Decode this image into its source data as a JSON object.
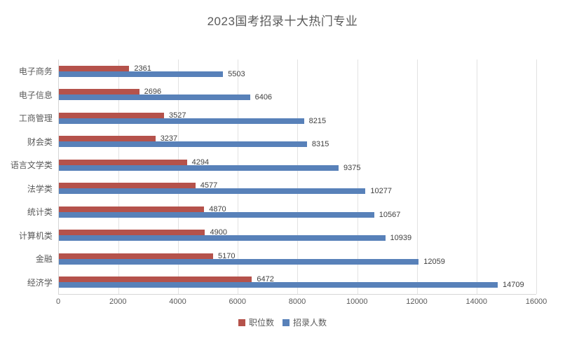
{
  "title": "2023国考招录十大热门专业",
  "chart_data": {
    "type": "bar",
    "orientation": "horizontal",
    "title": "2023国考招录十大热门专业",
    "categories": [
      "电子商务",
      "电子信息",
      "工商管理",
      "财会类",
      "语言文学类",
      "法学类",
      "统计类",
      "计算机类",
      "金融",
      "经济学"
    ],
    "series": [
      {
        "name": "职位数",
        "color": "#b5524b",
        "values": [
          2361,
          2696,
          3527,
          3237,
          4294,
          4577,
          4870,
          4900,
          5170,
          6472
        ]
      },
      {
        "name": "招录人数",
        "color": "#5881b9",
        "values": [
          5503,
          6406,
          8215,
          8315,
          9375,
          10277,
          10567,
          10939,
          12059,
          14709
        ]
      }
    ],
    "xlim": [
      0,
      16000
    ],
    "x_ticks": [
      0,
      2000,
      4000,
      6000,
      8000,
      10000,
      12000,
      14000,
      16000
    ],
    "grid": true,
    "value_labels": true,
    "legend_position": "bottom",
    "colors": {
      "title_text": "#595959",
      "axis_text": "#595959",
      "value_label_text": "#404040",
      "gridline": "#e2e2e2",
      "axis_line": "#d6d6d6",
      "background": "#ffffff"
    }
  }
}
